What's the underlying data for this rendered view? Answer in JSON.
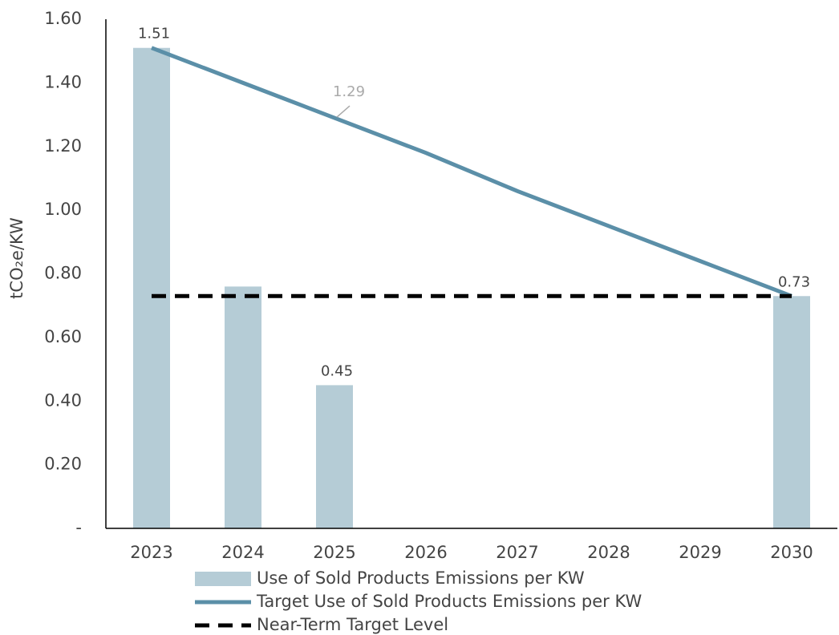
{
  "chart_data": {
    "type": "combo",
    "y_label": "tCO₂e/KW",
    "categories": [
      "2023",
      "2024",
      "2025",
      "2026",
      "2027",
      "2028",
      "2029",
      "2030"
    ],
    "ylim": [
      0,
      1.6
    ],
    "yticks": [
      {
        "value": 0,
        "label": "-"
      },
      {
        "value": 0.2,
        "label": "0.20"
      },
      {
        "value": 0.4,
        "label": "0.40"
      },
      {
        "value": 0.6,
        "label": "0.60"
      },
      {
        "value": 0.8,
        "label": "0.80"
      },
      {
        "value": 1.0,
        "label": "1.00"
      },
      {
        "value": 1.2,
        "label": "1.20"
      },
      {
        "value": 1.4,
        "label": "1.40"
      },
      {
        "value": 1.6,
        "label": "1.60"
      }
    ],
    "grid": false,
    "legend": "bottom",
    "series": [
      {
        "name": "Use of Sold Products Emissions per KW",
        "type": "bar",
        "color": "#b5ccd6",
        "values": [
          1.51,
          0.76,
          0.45,
          null,
          null,
          null,
          null,
          0.73
        ],
        "value_labels": [
          "1.51",
          null,
          "0.45",
          null,
          null,
          null,
          null,
          "0.73"
        ]
      },
      {
        "name": "Target Use of Sold Products Emissions per KW",
        "type": "line",
        "color": "#5b8fa8",
        "dash": "solid",
        "values": [
          1.51,
          1.4,
          1.29,
          1.18,
          1.06,
          0.95,
          0.84,
          0.73
        ],
        "value_labels": [
          null,
          null,
          "1.29",
          null,
          null,
          null,
          null,
          null
        ]
      },
      {
        "name": "Near-Term Target Level",
        "type": "line",
        "color": "#000000",
        "dash": "dashed",
        "values": [
          0.73,
          0.73,
          0.73,
          0.73,
          0.73,
          0.73,
          0.73,
          0.73
        ]
      }
    ]
  }
}
